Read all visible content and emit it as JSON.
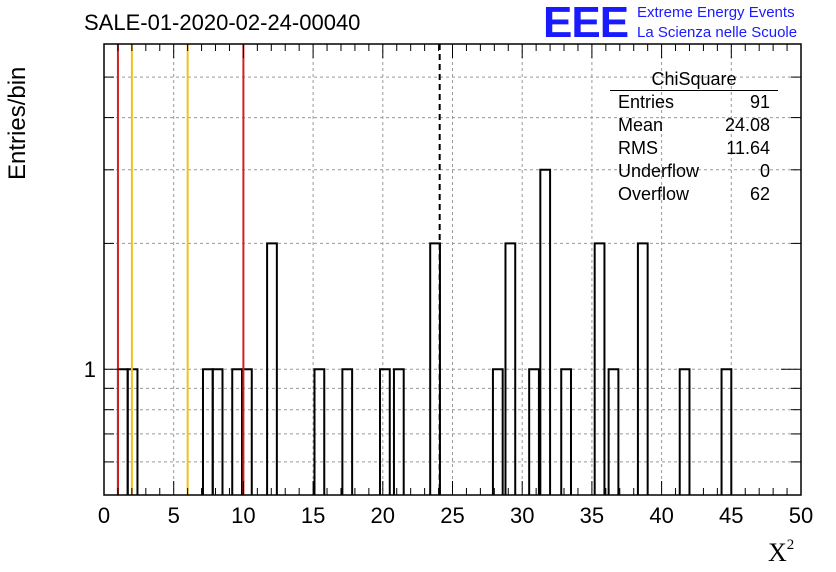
{
  "chart_data": {
    "type": "histogram",
    "title": "SALE-01-2020-02-24-00040",
    "xlabel": "X",
    "xlabel_sup": "2",
    "ylabel": "Entries/bin",
    "xlim": [
      0,
      50
    ],
    "ylim": [
      0.5,
      6
    ],
    "y_scale": "log",
    "grid": true,
    "x_ticks": [
      0,
      5,
      10,
      15,
      20,
      25,
      30,
      35,
      40,
      45,
      50
    ],
    "y_tick_labels": [
      {
        "value": 1,
        "label": "1"
      }
    ],
    "bin_width": 0.7,
    "bins": [
      {
        "x": 1.0,
        "value": 1
      },
      {
        "x": 1.7,
        "value": 1
      },
      {
        "x": 7.1,
        "value": 1
      },
      {
        "x": 7.8,
        "value": 1
      },
      {
        "x": 9.2,
        "value": 1
      },
      {
        "x": 9.9,
        "value": 1
      },
      {
        "x": 11.7,
        "value": 2
      },
      {
        "x": 15.1,
        "value": 1
      },
      {
        "x": 17.1,
        "value": 1
      },
      {
        "x": 19.8,
        "value": 1
      },
      {
        "x": 20.8,
        "value": 1
      },
      {
        "x": 23.4,
        "value": 2
      },
      {
        "x": 27.9,
        "value": 1
      },
      {
        "x": 28.8,
        "value": 2
      },
      {
        "x": 30.5,
        "value": 1
      },
      {
        "x": 31.3,
        "value": 3
      },
      {
        "x": 32.8,
        "value": 1
      },
      {
        "x": 35.2,
        "value": 2
      },
      {
        "x": 36.2,
        "value": 1
      },
      {
        "x": 38.3,
        "value": 2
      },
      {
        "x": 41.3,
        "value": 1
      },
      {
        "x": 44.3,
        "value": 1
      }
    ],
    "vertical_lines": [
      {
        "x": 1.0,
        "color": "#d42020"
      },
      {
        "x": 2.0,
        "color": "#f0c020"
      },
      {
        "x": 6.0,
        "color": "#f0c020"
      },
      {
        "x": 10.0,
        "color": "#d42020"
      },
      {
        "x": 24.08,
        "color": "#000000",
        "style": "dashed"
      }
    ],
    "stats": {
      "name": "ChiSquare",
      "rows": [
        {
          "label": "Entries",
          "value": "91"
        },
        {
          "label": "Mean",
          "value": "24.08"
        },
        {
          "label": "RMS",
          "value": "11.64"
        },
        {
          "label": "Underflow",
          "value": "0"
        },
        {
          "label": "Overflow",
          "value": "62"
        }
      ]
    }
  },
  "logo": {
    "mark": "EEE",
    "line1": "Extreme Energy Events",
    "line2": "La Scienza nelle Scuole"
  }
}
